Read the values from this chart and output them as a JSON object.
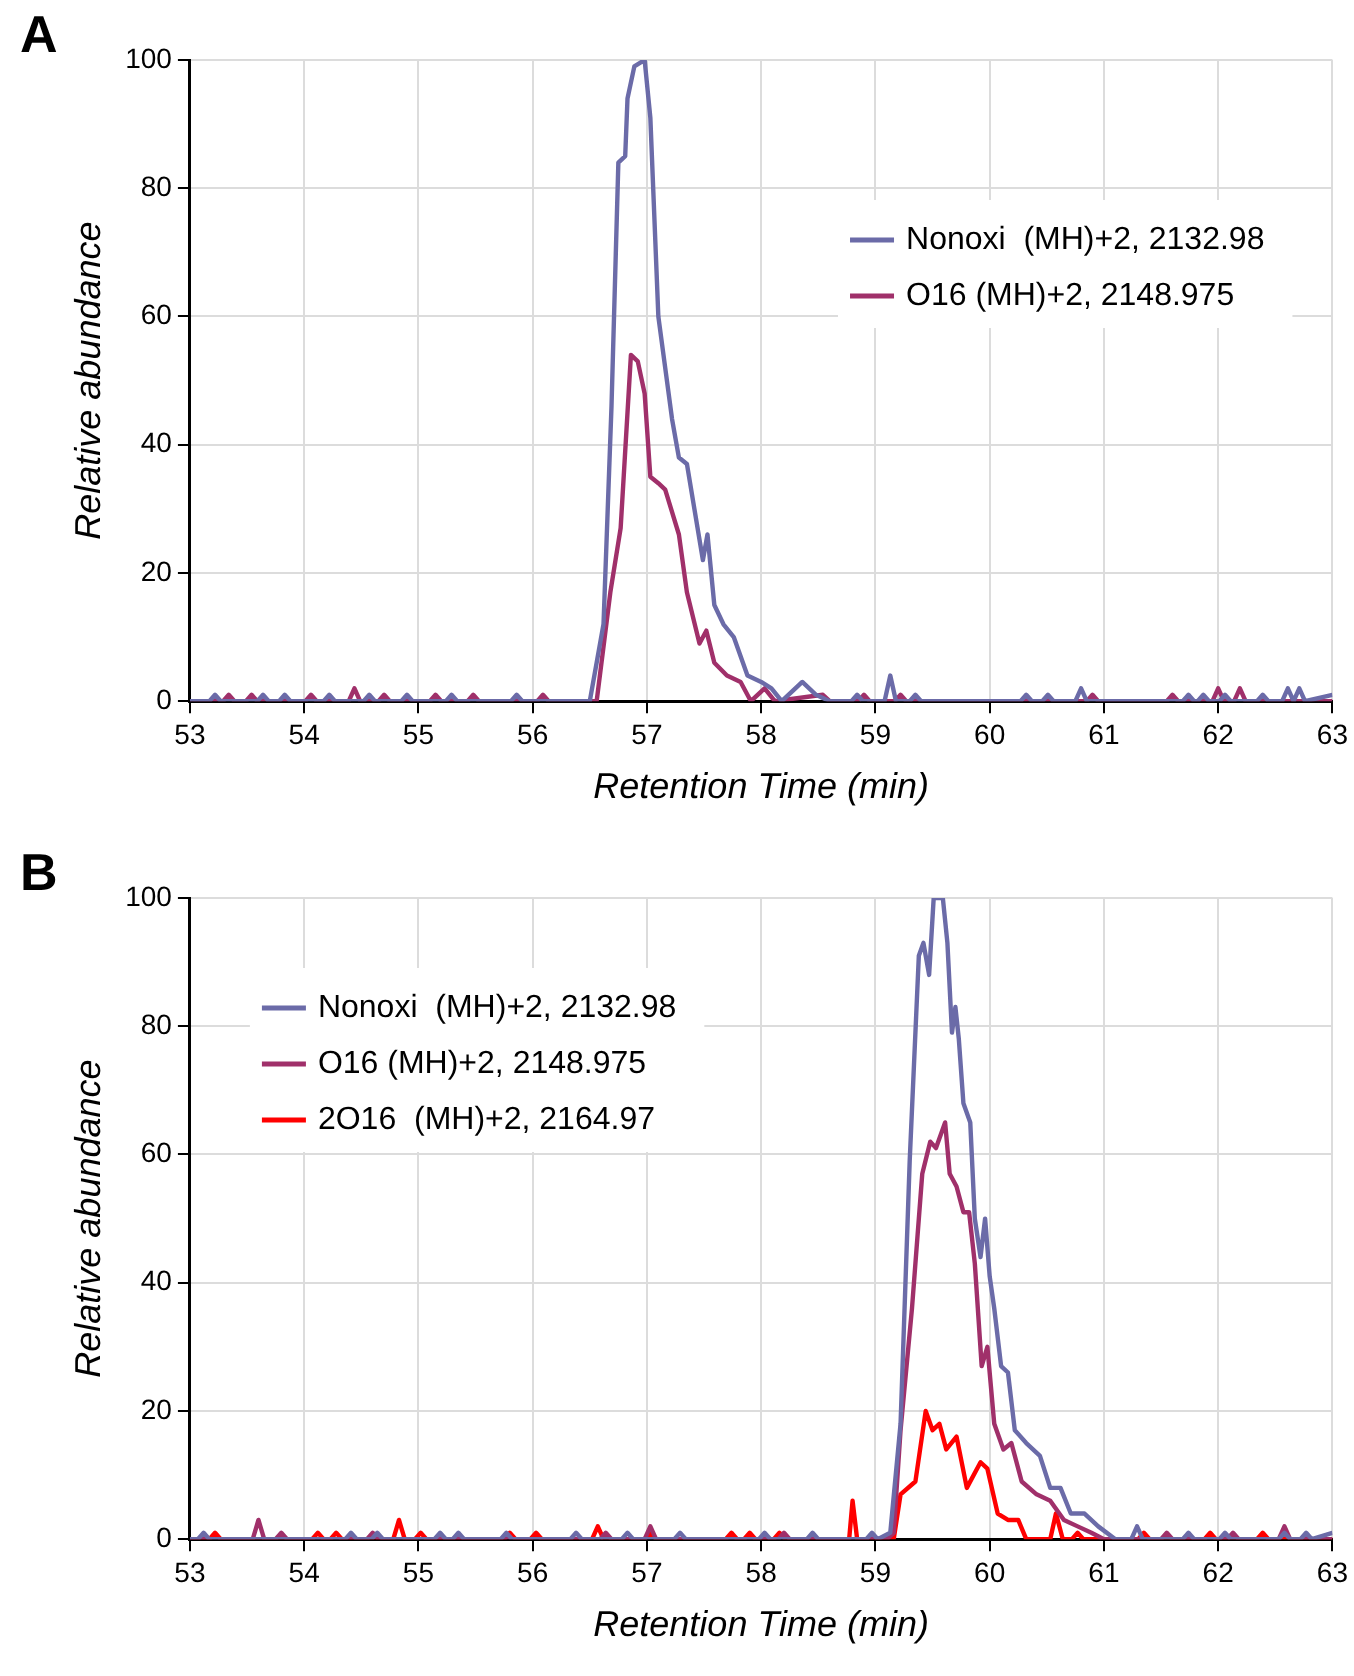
{
  "chart_data": [
    {
      "type": "line",
      "title": "A",
      "xlabel": "Retention Time (min)",
      "ylabel": "Relative abundance",
      "xlim": [
        53,
        63
      ],
      "xticks": [
        53,
        54,
        55,
        56,
        57,
        58,
        59,
        60,
        61,
        62,
        63
      ],
      "ylim": [
        0,
        100
      ],
      "yticks": [
        0,
        20,
        40,
        60,
        80,
        100
      ],
      "grid": true,
      "legend": "top right",
      "marker": "none",
      "line_style": "solid",
      "series": [
        {
          "name": "Nonoxi  (MH)+2, 2132.98",
          "color": "#6b6ba8",
          "x": [
            53,
            53.17,
            53.22,
            53.27,
            53.59,
            53.64,
            53.69,
            53.78,
            53.83,
            53.88,
            54.17,
            54.22,
            54.27,
            54.52,
            54.57,
            54.62,
            54.85,
            54.9,
            54.95,
            55.24,
            55.29,
            55.34,
            55.81,
            55.86,
            55.91,
            56.5,
            56.62,
            56.69,
            56.75,
            56.81,
            56.83,
            56.89,
            56.98,
            57.03,
            57.1,
            57.22,
            57.28,
            57.35,
            57.49,
            57.53,
            57.59,
            57.67,
            57.76,
            57.88,
            58,
            58.09,
            58.18,
            58.36,
            58.48,
            58.6,
            58.79,
            58.84,
            58.89,
            59.08,
            59.13,
            59.18,
            59.3,
            59.35,
            59.4,
            60.27,
            60.32,
            60.37,
            60.46,
            60.51,
            60.56,
            60.75,
            60.8,
            60.85,
            61.69,
            61.74,
            61.79,
            61.82,
            61.87,
            61.92,
            62.01,
            62.06,
            62.11,
            62.34,
            62.39,
            62.44,
            62.56,
            62.61,
            62.66,
            62.71,
            62.76,
            63
          ],
          "values": [
            0,
            0,
            1,
            0,
            0,
            1,
            0,
            0,
            1,
            0,
            0,
            1,
            0,
            0,
            1,
            0,
            0,
            1,
            0,
            0,
            1,
            0,
            0,
            1,
            0,
            0,
            12,
            46,
            84,
            85,
            94,
            99,
            100,
            91,
            60,
            44,
            38,
            37,
            22,
            26,
            15,
            12,
            10,
            4,
            3,
            2,
            0,
            3,
            1,
            0,
            0,
            1,
            0,
            0,
            4,
            0,
            0,
            1,
            0,
            0,
            1,
            0,
            0,
            1,
            0,
            0,
            2,
            0,
            0,
            1,
            0,
            0,
            1,
            0,
            0,
            1,
            0,
            0,
            1,
            0,
            0,
            2,
            0,
            2,
            0,
            1
          ]
        },
        {
          "name": "O16 (MH)+2, 2148.975",
          "color": "#a0306a",
          "x": [
            53,
            53.29,
            53.34,
            53.39,
            53.49,
            53.54,
            53.59,
            54.01,
            54.06,
            54.11,
            54.39,
            54.44,
            54.49,
            54.65,
            54.7,
            54.75,
            55.1,
            55.15,
            55.2,
            55.43,
            55.48,
            55.53,
            56.04,
            56.09,
            56.14,
            56.56,
            56.68,
            56.77,
            56.86,
            56.92,
            56.98,
            57.03,
            57.1,
            57.16,
            57.28,
            57.35,
            57.46,
            57.52,
            57.59,
            57.7,
            57.82,
            57.91,
            58.03,
            58.12,
            58.54,
            58.6,
            58.85,
            58.9,
            58.95,
            59.17,
            59.22,
            59.27,
            60.85,
            60.9,
            60.95,
            61.55,
            61.6,
            61.65,
            61.95,
            62,
            62.05,
            62.14,
            62.19,
            62.24,
            63
          ],
          "values": [
            0,
            0,
            1,
            0,
            0,
            1,
            0,
            0,
            1,
            0,
            0,
            2,
            0,
            0,
            1,
            0,
            0,
            1,
            0,
            0,
            1,
            0,
            0,
            1,
            0,
            0,
            17,
            27,
            54,
            53,
            48,
            35,
            34,
            33,
            26,
            17,
            9,
            11,
            6,
            4,
            3,
            0,
            2,
            0,
            1,
            0,
            0,
            1,
            0,
            0,
            1,
            0,
            0,
            1,
            0,
            0,
            1,
            0,
            0,
            2,
            0,
            0,
            2,
            0,
            0
          ]
        }
      ]
    },
    {
      "type": "line",
      "title": "B",
      "xlabel": "Retention Time (min)",
      "ylabel": "Relative abundance",
      "xlim": [
        53,
        63
      ],
      "xticks": [
        53,
        54,
        55,
        56,
        57,
        58,
        59,
        60,
        61,
        62,
        63
      ],
      "ylim": [
        0,
        100
      ],
      "yticks": [
        0,
        20,
        40,
        60,
        80,
        100
      ],
      "grid": true,
      "legend": "top left",
      "marker": "none",
      "line_style": "solid",
      "series": [
        {
          "name": "Nonoxi  (MH)+2, 2132.98",
          "color": "#6b6ba8",
          "x": [
            53,
            53.07,
            53.12,
            53.17,
            54.36,
            54.41,
            54.46,
            54.59,
            54.64,
            54.69,
            55.14,
            55.19,
            55.24,
            55.3,
            55.35,
            55.4,
            55.72,
            55.77,
            55.82,
            56.33,
            56.38,
            56.43,
            56.78,
            56.83,
            56.88,
            57.24,
            57.29,
            57.34,
            57.98,
            58.03,
            58.08,
            58.4,
            58.45,
            58.5,
            58.92,
            58.97,
            59.02,
            59.13,
            59.22,
            59.3,
            59.38,
            59.42,
            59.47,
            59.51,
            59.59,
            59.63,
            59.67,
            59.7,
            59.73,
            59.77,
            59.83,
            59.87,
            59.92,
            59.96,
            60,
            60.04,
            60.1,
            60.16,
            60.22,
            60.32,
            60.44,
            60.53,
            60.62,
            60.71,
            60.83,
            60.95,
            61.1,
            61.24,
            61.29,
            61.34,
            61.69,
            61.74,
            61.79,
            62.01,
            62.06,
            62.11,
            62.53,
            62.58,
            62.63,
            62.72,
            62.77,
            62.82,
            63
          ],
          "values": [
            0,
            0,
            1,
            0,
            0,
            1,
            0,
            0,
            1,
            0,
            0,
            1,
            0,
            0,
            1,
            0,
            0,
            1,
            0,
            0,
            1,
            0,
            0,
            1,
            0,
            0,
            1,
            0,
            0,
            1,
            0,
            0,
            1,
            0,
            0,
            1,
            0,
            1,
            18,
            59,
            91,
            93,
            88,
            100,
            100,
            93,
            79,
            83,
            78,
            68,
            65,
            50,
            44,
            50,
            41,
            36,
            27,
            26,
            17,
            15,
            13,
            8,
            8,
            4,
            4,
            2,
            0,
            0,
            2,
            0,
            0,
            1,
            0,
            0,
            1,
            0,
            0,
            1,
            0,
            0,
            1,
            0,
            1
          ]
        },
        {
          "name": "O16 (MH)+2, 2148.975",
          "color": "#a0306a",
          "x": [
            53,
            53.55,
            53.6,
            53.65,
            53.75,
            53.8,
            53.85,
            54.55,
            54.6,
            54.65,
            56.59,
            56.64,
            56.69,
            56.98,
            57.03,
            57.08,
            58.15,
            58.2,
            58.25,
            59.1,
            59.16,
            59.22,
            59.32,
            59.41,
            59.48,
            59.53,
            59.61,
            59.65,
            59.71,
            59.77,
            59.82,
            59.87,
            59.93,
            59.98,
            60.04,
            60.12,
            60.19,
            60.28,
            60.41,
            60.53,
            60.65,
            60.77,
            60.89,
            61,
            61.5,
            61.55,
            61.6,
            62.08,
            62.13,
            62.18,
            62.53,
            62.58,
            62.63,
            63
          ],
          "values": [
            0,
            0,
            3,
            0,
            0,
            1,
            0,
            0,
            1,
            0,
            0,
            1,
            0,
            0,
            2,
            0,
            0,
            1,
            0,
            0,
            1,
            17,
            36,
            57,
            62,
            61,
            65,
            57,
            55,
            51,
            51,
            43,
            27,
            30,
            18,
            14,
            15,
            9,
            7,
            6,
            3,
            2,
            1,
            0,
            0,
            1,
            0,
            0,
            1,
            0,
            0,
            2,
            0,
            0
          ]
        },
        {
          "name": "2O16  (MH)+2, 2164.97",
          "color": "#ff0000",
          "x": [
            53,
            53.17,
            53.22,
            53.27,
            54.07,
            54.12,
            54.17,
            54.23,
            54.28,
            54.33,
            54.78,
            54.83,
            54.88,
            54.97,
            55.02,
            55.07,
            55.75,
            55.8,
            55.85,
            55.98,
            56.03,
            56.08,
            56.52,
            56.57,
            56.62,
            56.98,
            57.03,
            57.08,
            57.69,
            57.74,
            57.79,
            57.85,
            57.9,
            57.95,
            58.11,
            58.16,
            58.21,
            58.77,
            58.8,
            58.84,
            59.16,
            59.22,
            59.35,
            59.44,
            59.5,
            59.56,
            59.62,
            59.71,
            59.8,
            59.92,
            59.98,
            60.07,
            60.16,
            60.25,
            60.32,
            60.53,
            60.58,
            60.64,
            60.72,
            60.77,
            60.82,
            61.3,
            61.35,
            61.4,
            61.88,
            61.93,
            61.98,
            62.34,
            62.39,
            62.44,
            63
          ],
          "values": [
            0,
            0,
            1,
            0,
            0,
            1,
            0,
            0,
            1,
            0,
            0,
            3,
            0,
            0,
            1,
            0,
            0,
            1,
            0,
            0,
            1,
            0,
            0,
            2,
            0,
            0,
            1,
            0,
            0,
            1,
            0,
            0,
            1,
            0,
            0,
            1,
            0,
            0,
            6,
            0,
            0,
            7,
            9,
            20,
            17,
            18,
            14,
            16,
            8,
            12,
            11,
            4,
            3,
            3,
            0,
            0,
            4,
            0,
            0,
            1,
            0,
            0,
            1,
            0,
            0,
            1,
            0,
            0,
            1,
            0,
            0
          ]
        }
      ]
    }
  ]
}
